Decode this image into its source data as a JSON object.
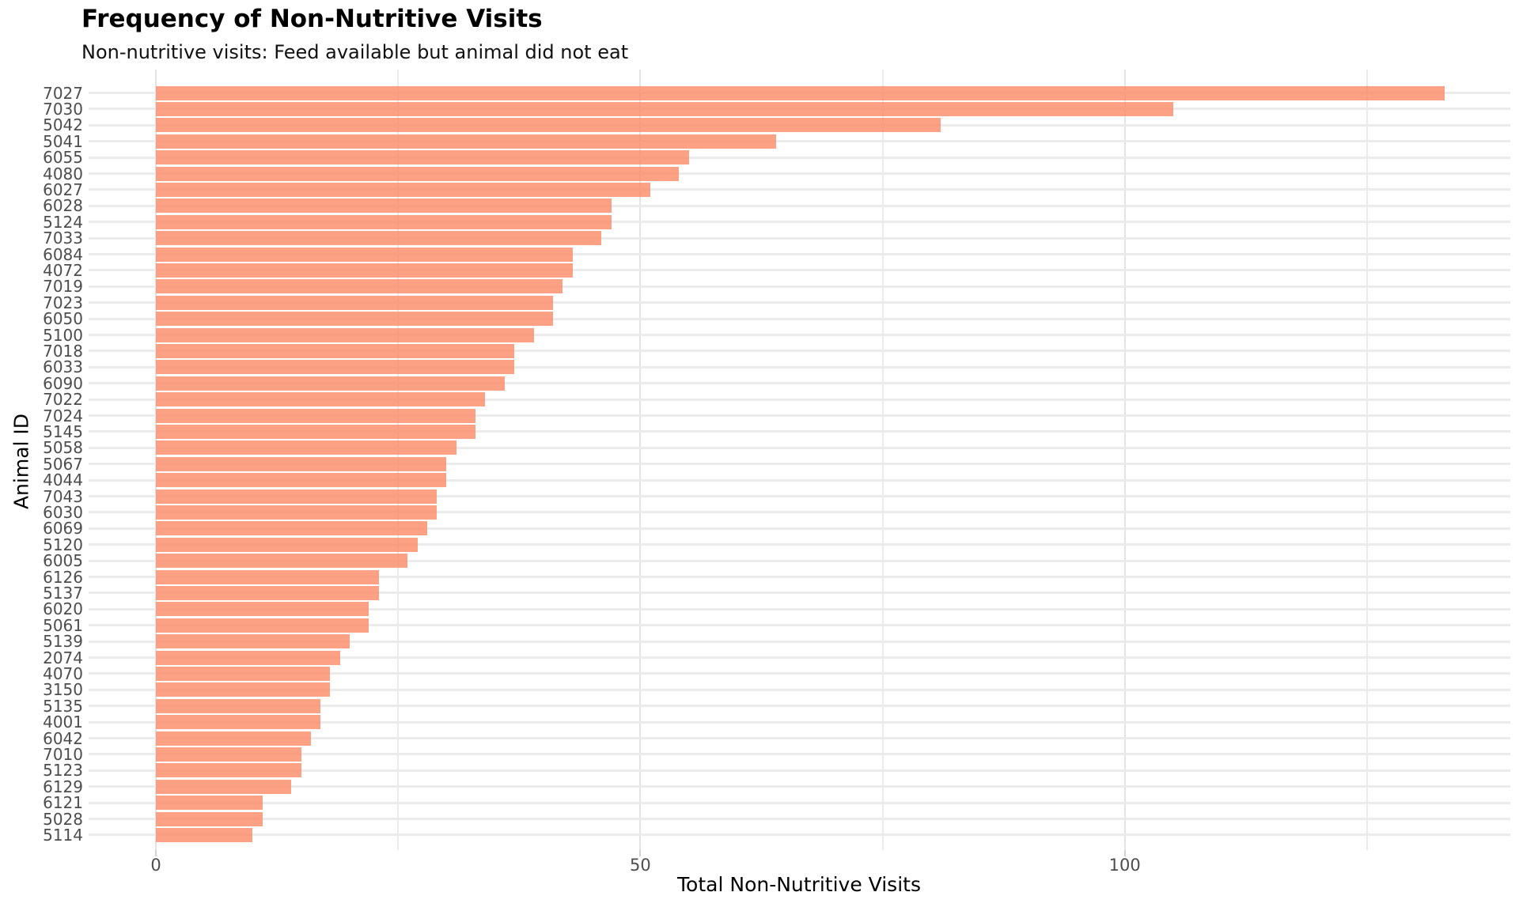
{
  "chart_data": {
    "type": "bar",
    "orientation": "horizontal",
    "title": "Frequency of Non-Nutritive Visits",
    "subtitle": "Non-nutritive visits: Feed available but animal did not eat",
    "xlabel": "Total Non-Nutritive Visits",
    "ylabel": "Animal ID",
    "categories": [
      "7027",
      "7030",
      "5042",
      "5041",
      "6055",
      "4080",
      "6027",
      "6028",
      "5124",
      "7033",
      "6084",
      "4072",
      "7019",
      "7023",
      "6050",
      "5100",
      "7018",
      "6033",
      "6090",
      "7022",
      "7024",
      "5145",
      "5058",
      "5067",
      "4044",
      "7043",
      "6030",
      "6069",
      "5120",
      "6005",
      "6126",
      "5137",
      "6020",
      "5061",
      "5139",
      "2074",
      "4070",
      "3150",
      "5135",
      "4001",
      "6042",
      "7010",
      "5123",
      "6129",
      "6121",
      "5028",
      "5114"
    ],
    "values": [
      133,
      105,
      81,
      64,
      55,
      54,
      51,
      47,
      47,
      46,
      43,
      43,
      42,
      41,
      41,
      39,
      37,
      37,
      36,
      34,
      33,
      33,
      31,
      30,
      30,
      29,
      29,
      28,
      27,
      26,
      23,
      23,
      22,
      22,
      20,
      19,
      18,
      18,
      17,
      17,
      16,
      15,
      15,
      14,
      11,
      11,
      10
    ],
    "xlim": [
      0,
      139
    ],
    "xticks": [
      0,
      50,
      100
    ],
    "grid_x": [
      0,
      25,
      50,
      75,
      100,
      125
    ],
    "grid": "on",
    "legend": "none",
    "bar_color": "#FCA184",
    "grid_color": "#EBEBEB",
    "tick_label_color": "#4D4D4D"
  }
}
